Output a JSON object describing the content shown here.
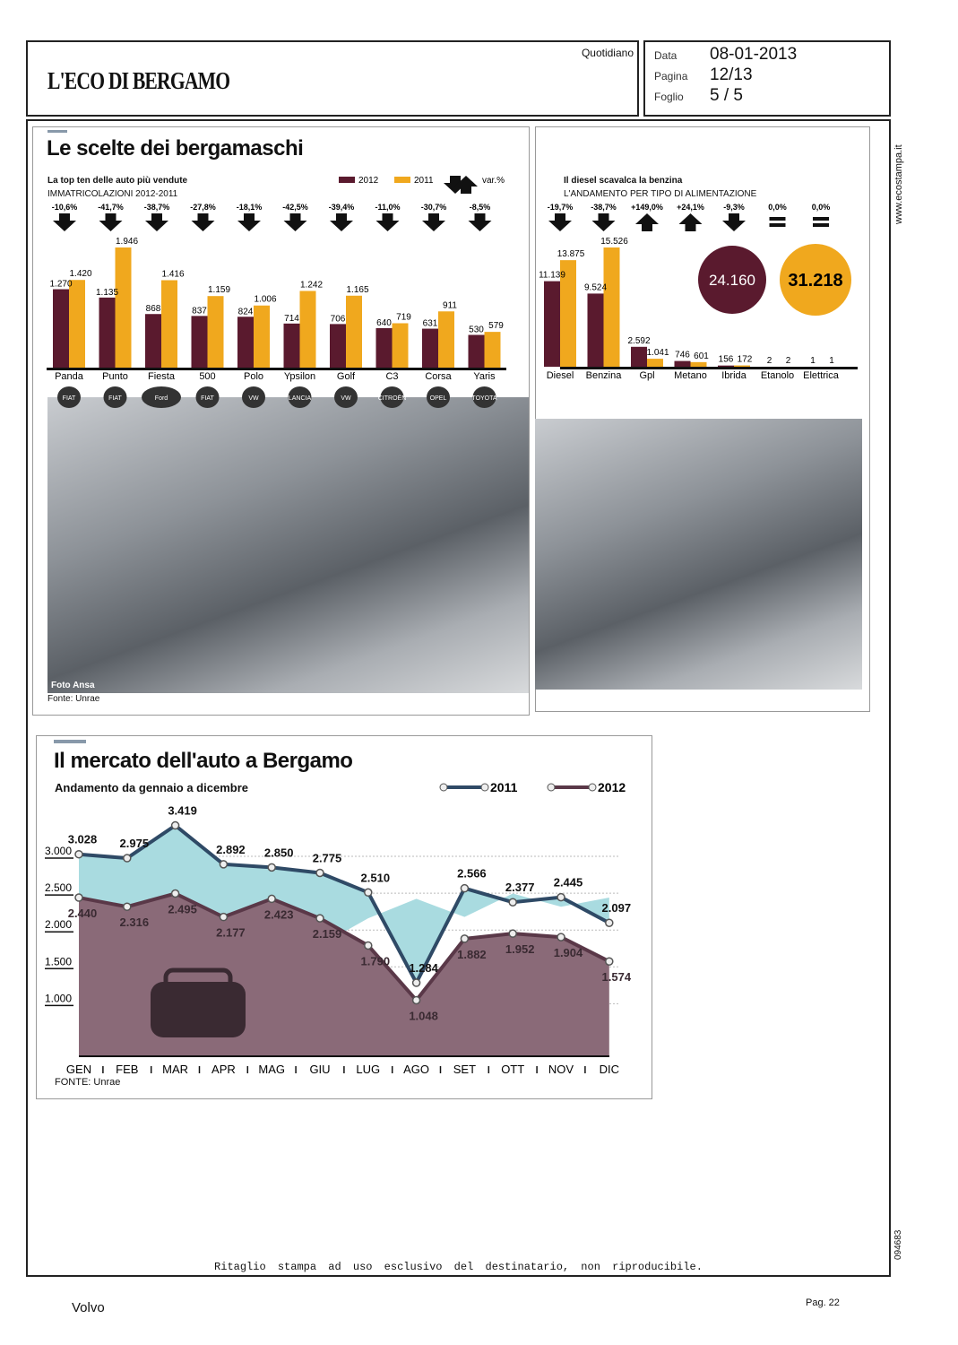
{
  "header": {
    "newspaper": "L'ECO DI BERGAMO",
    "type": "Quotidiano",
    "data_label": "Data",
    "data_value": "08-01-2013",
    "pagina_label": "Pagina",
    "pagina_value": "12/13",
    "foglio_label": "Foglio",
    "foglio_value": "5 / 5"
  },
  "side": {
    "site": "www.ecostampa.it",
    "code": "094683"
  },
  "footer": {
    "notice": "Ritaglio stampa ad uso esclusivo del destinatario, non riproducibile.",
    "client": "Volvo",
    "page": "Pag. 22"
  },
  "article": {
    "title": "Le scelte dei bergamaschi",
    "photo_credit": "Foto Ansa",
    "source": "Fonte: Unrae"
  },
  "colors": {
    "y2012": "#5a1a2e",
    "y2011": "#f0a81e",
    "area2011": "#a9dbe0",
    "area2012": "#8a6a78",
    "line2011": "#2f4a66",
    "line2012": "#5a3848"
  },
  "chart_data": [
    {
      "type": "bar",
      "title": "La top ten delle auto più vendute",
      "subtitle": "IMMATRICOLAZIONI 2012-2011",
      "legend": [
        "2012",
        "2011",
        "var.%"
      ],
      "categories": [
        "Panda",
        "Punto",
        "Fiesta",
        "500",
        "Polo",
        "Ypsilon",
        "Golf",
        "C3",
        "Corsa",
        "Yaris"
      ],
      "brands": [
        "FIAT",
        "FIAT",
        "Ford",
        "FIAT",
        "VW",
        "LANCIA",
        "VW",
        "CITROËN",
        "OPEL",
        "TOYOTA"
      ],
      "series": [
        {
          "name": "2012",
          "values": [
            1270,
            1135,
            868,
            837,
            824,
            714,
            706,
            640,
            631,
            530
          ],
          "labels": [
            "1.270",
            "1.135",
            "868",
            "837",
            "824",
            "714",
            "706",
            "640",
            "631",
            "530"
          ]
        },
        {
          "name": "2011",
          "values": [
            1420,
            1946,
            1416,
            1159,
            1006,
            1242,
            1165,
            719,
            911,
            579
          ],
          "labels": [
            "1.420",
            "1.946",
            "1.416",
            "1.159",
            "1.006",
            "1.242",
            "1.165",
            "719",
            "911",
            "579"
          ]
        }
      ],
      "var": [
        "-10,6%",
        "-41,7%",
        "-38,7%",
        "-27,8%",
        "-18,1%",
        "-42,5%",
        "-39,4%",
        "-11,0%",
        "-30,7%",
        "-8,5%"
      ],
      "var_dir": [
        "down",
        "down",
        "down",
        "down",
        "down",
        "down",
        "down",
        "down",
        "down",
        "down"
      ]
    },
    {
      "type": "bar",
      "title": "Il diesel scavalca la benzina",
      "subtitle": "L'ANDAMENTO PER TIPO DI ALIMENTAZIONE",
      "categories": [
        "Diesel",
        "Benzina",
        "Gpl",
        "Metano",
        "Ibrida",
        "Etanolo",
        "Elettrica"
      ],
      "series": [
        {
          "name": "2012",
          "values": [
            11139,
            9524,
            2592,
            746,
            156,
            2,
            1
          ],
          "labels": [
            "11.139",
            "9.524",
            "2.592",
            "746",
            "156",
            "2",
            "1"
          ]
        },
        {
          "name": "2011",
          "values": [
            13875,
            15526,
            1041,
            601,
            172,
            2,
            1
          ],
          "labels": [
            "13.875",
            "15.526",
            "1.041",
            "601",
            "172",
            "2",
            "1"
          ]
        }
      ],
      "var": [
        "-19,7%",
        "-38,7%",
        "+149,0%",
        "+24,1%",
        "-9,3%",
        "0,0%",
        "0,0%"
      ],
      "var_dir": [
        "down",
        "down",
        "up",
        "up",
        "down",
        "equal",
        "equal"
      ],
      "totals": [
        {
          "series": "2012",
          "label": "24.160",
          "value": 24160
        },
        {
          "series": "2011",
          "label": "31.218",
          "value": 31218
        }
      ]
    },
    {
      "type": "area",
      "title": "Il mercato dell'auto a Bergamo",
      "subtitle": "Andamento da gennaio a dicembre",
      "source": "FONTE: Unrae",
      "categories": [
        "GEN",
        "FEB",
        "MAR",
        "APR",
        "MAG",
        "GIU",
        "LUG",
        "AGO",
        "SET",
        "OTT",
        "NOV",
        "DIC"
      ],
      "yticks": [
        {
          "v": 3000,
          "label": "3.000"
        },
        {
          "v": 2500,
          "label": "2.500"
        },
        {
          "v": 2000,
          "label": "2.000"
        },
        {
          "v": 1500,
          "label": "1.500"
        },
        {
          "v": 1000,
          "label": "1.000"
        }
      ],
      "grid": true,
      "legend_position": "top-right",
      "series": [
        {
          "name": "2011",
          "values": [
            3028,
            2975,
            3419,
            2892,
            2850,
            2775,
            2510,
            1284,
            2566,
            2377,
            2445,
            2097
          ],
          "labels": [
            "3.028",
            "2.975",
            "3.419",
            "2.892",
            "2.850",
            "2.775",
            "2.510",
            "1.284",
            "2.566",
            "2.377",
            "2.445",
            "2.097"
          ]
        },
        {
          "name": "2012",
          "values": [
            2440,
            2316,
            2495,
            2177,
            2423,
            2159,
            1790,
            1048,
            1882,
            1952,
            1904,
            1574
          ],
          "labels": [
            "2.440",
            "2.316",
            "2.495",
            "2.177",
            "2.423",
            "2.159",
            "1.790",
            "1.048",
            "1.882",
            "1.952",
            "1.904",
            "1.574"
          ]
        }
      ]
    }
  ]
}
